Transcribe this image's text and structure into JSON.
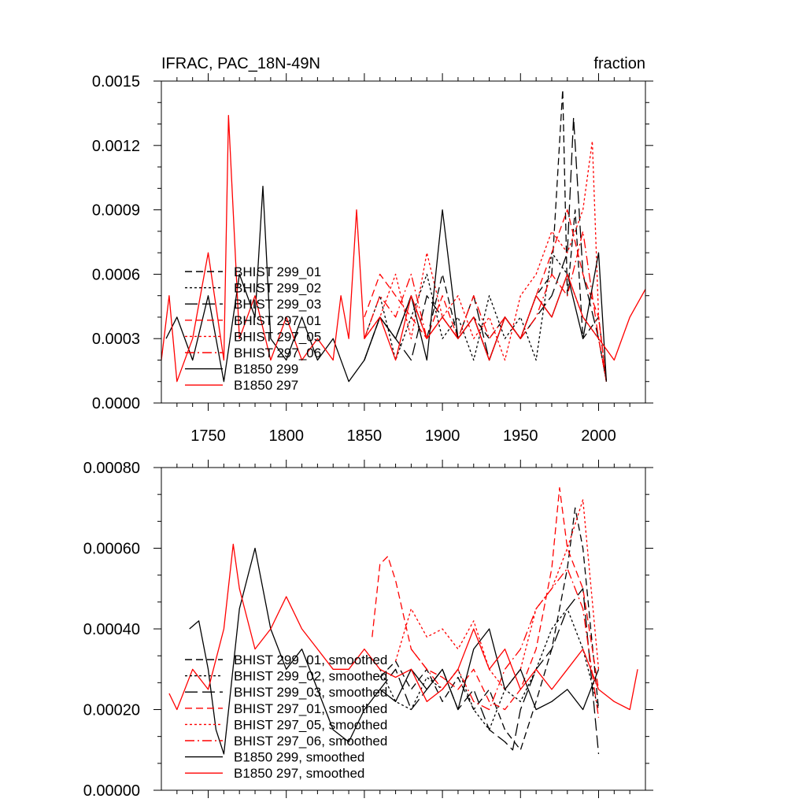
{
  "chart_data": [
    {
      "type": "line",
      "title": "IFRAC, PAC_18N-49N",
      "units": "fraction",
      "xlim": [
        1720,
        2030
      ],
      "ylim": [
        0,
        0.0015
      ],
      "xticks": [
        1750,
        1800,
        1850,
        1900,
        1950,
        2000
      ],
      "xtick_labels": [
        "1750",
        "1800",
        "1850",
        "1900",
        "1950",
        "2000"
      ],
      "yticks": [
        0,
        0.0003,
        0.0006,
        0.0009,
        0.0012,
        0.0015
      ],
      "ytick_labels": [
        "0.0000",
        "0.0003",
        "0.0006",
        "0.0009",
        "0.0012",
        "0.0015"
      ],
      "legend": [
        {
          "label": "BHIST 299_01",
          "color": "#000000",
          "style": "dash"
        },
        {
          "label": "BHIST 299_02",
          "color": "#000000",
          "style": "dot"
        },
        {
          "label": "BHIST 299_03",
          "color": "#000000",
          "style": "longdash"
        },
        {
          "label": "BHIST 297_01",
          "color": "#ff0000",
          "style": "dash"
        },
        {
          "label": "BHIST 297_05",
          "color": "#ff0000",
          "style": "dot"
        },
        {
          "label": "BHIST 297_06",
          "color": "#ff0000",
          "style": "dashdot"
        },
        {
          "label": "B1850 299",
          "color": "#000000",
          "style": "solid"
        },
        {
          "label": "B1850 297",
          "color": "#ff0000",
          "style": "solid"
        }
      ],
      "series": [
        {
          "name": "BHIST 299_01",
          "color": "#000000",
          "style": "dash",
          "x": [
            1850,
            1860,
            1870,
            1880,
            1890,
            1900,
            1910,
            1920,
            1930,
            1940,
            1950,
            1960,
            1970,
            1977,
            1980,
            1985,
            1990,
            2000,
            2005
          ],
          "y": [
            0.0002,
            0.0004,
            0.0003,
            0.0005,
            0.0003,
            0.0006,
            0.0003,
            0.0004,
            0.0003,
            0.0004,
            0.0003,
            0.0005,
            0.0006,
            0.00146,
            0.0005,
            0.0009,
            0.0003,
            0.0004,
            0.0001
          ]
        },
        {
          "name": "BHIST 299_02",
          "color": "#000000",
          "style": "dot",
          "x": [
            1850,
            1860,
            1870,
            1880,
            1890,
            1900,
            1910,
            1920,
            1930,
            1940,
            1950,
            1960,
            1970,
            1980,
            1990,
            2000,
            2005
          ],
          "y": [
            0.0003,
            0.0005,
            0.0002,
            0.0004,
            0.0006,
            0.0003,
            0.0004,
            0.0002,
            0.0005,
            0.0003,
            0.0004,
            0.0002,
            0.0007,
            0.0006,
            0.0004,
            0.0003,
            0.0001
          ]
        },
        {
          "name": "BHIST 299_03",
          "color": "#000000",
          "style": "longdash",
          "x": [
            1850,
            1860,
            1870,
            1880,
            1890,
            1900,
            1910,
            1920,
            1930,
            1940,
            1950,
            1960,
            1970,
            1980,
            1984,
            1990,
            2000,
            2005
          ],
          "y": [
            0.0002,
            0.0004,
            0.0003,
            0.0002,
            0.0005,
            0.0004,
            0.0003,
            0.0005,
            0.0002,
            0.0004,
            0.0003,
            0.0004,
            0.0005,
            0.0007,
            0.00133,
            0.0006,
            0.0003,
            0.0001
          ]
        },
        {
          "name": "BHIST 297_01",
          "color": "#ff0000",
          "style": "dash",
          "x": [
            1850,
            1860,
            1870,
            1880,
            1890,
            1900,
            1910,
            1920,
            1930,
            1940,
            1950,
            1960,
            1970,
            1980,
            1990,
            2000,
            2005
          ],
          "y": [
            0.0004,
            0.0006,
            0.0005,
            0.0004,
            0.0003,
            0.0005,
            0.0003,
            0.0004,
            0.0002,
            0.0004,
            0.0003,
            0.0005,
            0.0007,
            0.0009,
            0.0006,
            0.0004,
            0.0001
          ]
        },
        {
          "name": "BHIST 297_05",
          "color": "#ff0000",
          "style": "dot",
          "x": [
            1850,
            1860,
            1870,
            1880,
            1890,
            1900,
            1910,
            1920,
            1930,
            1940,
            1950,
            1960,
            1970,
            1980,
            1990,
            1996,
            2000,
            2005
          ],
          "y": [
            0.0003,
            0.0004,
            0.0006,
            0.0003,
            0.0007,
            0.0004,
            0.0005,
            0.0003,
            0.0004,
            0.0002,
            0.0005,
            0.0006,
            0.0008,
            0.0007,
            0.0009,
            0.00122,
            0.0004,
            0.0001
          ]
        },
        {
          "name": "BHIST 297_06",
          "color": "#ff0000",
          "style": "dashdot",
          "x": [
            1850,
            1860,
            1870,
            1880,
            1890,
            1900,
            1910,
            1920,
            1930,
            1940,
            1950,
            1960,
            1970,
            1980,
            1990,
            2000,
            2005
          ],
          "y": [
            0.0003,
            0.0005,
            0.0004,
            0.0006,
            0.0003,
            0.0004,
            0.0003,
            0.0005,
            0.0003,
            0.0004,
            0.0003,
            0.0004,
            0.0006,
            0.0005,
            0.0008,
            0.0003,
            0.0001
          ]
        },
        {
          "name": "B1850 299",
          "color": "#000000",
          "style": "solid",
          "x": [
            1723,
            1730,
            1740,
            1750,
            1760,
            1770,
            1780,
            1785,
            1790,
            1800,
            1810,
            1820,
            1830,
            1840,
            1850,
            1860,
            1870,
            1880,
            1890,
            1900,
            1910,
            1920,
            1930,
            1940,
            1950,
            1960,
            1970,
            1980,
            1990,
            2000,
            2005
          ],
          "y": [
            0.0003,
            0.0004,
            0.0002,
            0.0005,
            0.0001,
            0.0006,
            0.0004,
            0.00101,
            0.0003,
            0.0002,
            0.0004,
            0.0002,
            0.0003,
            0.0001,
            0.0002,
            0.0004,
            0.0003,
            0.0005,
            0.0002,
            0.0009,
            0.0003,
            0.0004,
            0.0002,
            0.0004,
            0.0003,
            0.0005,
            0.0004,
            0.0006,
            0.0003,
            0.0007,
            0.0001
          ]
        },
        {
          "name": "B1850 297",
          "color": "#ff0000",
          "style": "solid",
          "x": [
            1720,
            1725,
            1730,
            1740,
            1750,
            1760,
            1763,
            1770,
            1780,
            1790,
            1800,
            1810,
            1820,
            1830,
            1835,
            1840,
            1845,
            1850,
            1860,
            1870,
            1880,
            1890,
            1900,
            1910,
            1920,
            1930,
            1940,
            1950,
            1960,
            1970,
            1980,
            1990,
            2000,
            2010,
            2020,
            2030
          ],
          "y": [
            0.0002,
            0.0005,
            0.0001,
            0.0003,
            0.0007,
            0.0002,
            0.00134,
            0.0003,
            0.0005,
            0.0002,
            0.0004,
            0.0002,
            0.0003,
            0.0002,
            0.0005,
            0.0003,
            0.0009,
            0.0003,
            0.0004,
            0.0002,
            0.0005,
            0.0003,
            0.0004,
            0.0003,
            0.0004,
            0.0002,
            0.0004,
            0.0003,
            0.0005,
            0.0004,
            0.0006,
            0.0004,
            0.0003,
            0.0002,
            0.0004,
            0.00053
          ]
        }
      ]
    },
    {
      "type": "line",
      "title": "",
      "xlim": [
        1720,
        2030
      ],
      "ylim": [
        0,
        0.0008
      ],
      "yticks": [
        0,
        0.0002,
        0.0004,
        0.0006,
        0.0008
      ],
      "ytick_labels": [
        "0.00000",
        "0.00020",
        "0.00040",
        "0.00060",
        "0.00080"
      ],
      "legend": [
        {
          "label": "BHIST 299_01, smoothed",
          "color": "#000000",
          "style": "dash"
        },
        {
          "label": "BHIST 299_02, smoothed",
          "color": "#000000",
          "style": "dot"
        },
        {
          "label": "BHIST 299_03, smoothed",
          "color": "#000000",
          "style": "longdash"
        },
        {
          "label": "BHIST 297_01, smoothed",
          "color": "#ff0000",
          "style": "dash"
        },
        {
          "label": "BHIST 297_05, smoothed",
          "color": "#ff0000",
          "style": "dot"
        },
        {
          "label": "BHIST 297_06, smoothed",
          "color": "#ff0000",
          "style": "dashdot"
        },
        {
          "label": "B1850 299, smoothed",
          "color": "#000000",
          "style": "solid"
        },
        {
          "label": "B1850 297, smoothed",
          "color": "#ff0000",
          "style": "solid"
        }
      ],
      "series": [
        {
          "name": "BHIST 299_01, smoothed",
          "color": "#000000",
          "style": "dash",
          "x": [
            1860,
            1870,
            1880,
            1890,
            1900,
            1910,
            1920,
            1930,
            1940,
            1950,
            1960,
            1970,
            1980,
            1985,
            1990,
            2000
          ],
          "y": [
            0.00028,
            0.00032,
            0.00025,
            0.0003,
            0.00022,
            0.00028,
            0.0002,
            0.00025,
            0.00015,
            0.0001,
            0.00022,
            0.00035,
            0.00055,
            0.0007,
            0.0006,
            0.0002
          ]
        },
        {
          "name": "BHIST 299_02, smoothed",
          "color": "#000000",
          "style": "dot",
          "x": [
            1860,
            1870,
            1880,
            1890,
            1900,
            1910,
            1920,
            1930,
            1940,
            1950,
            1960,
            1970,
            1980,
            1990,
            2000
          ],
          "y": [
            0.0003,
            0.00022,
            0.0002,
            0.00028,
            0.00025,
            0.0003,
            0.0002,
            0.00015,
            0.00025,
            0.00022,
            0.0003,
            0.0004,
            0.00045,
            0.00035,
            0.0002
          ]
        },
        {
          "name": "BHIST 299_03, smoothed",
          "color": "#000000",
          "style": "longdash",
          "x": [
            1860,
            1870,
            1880,
            1890,
            1900,
            1910,
            1920,
            1930,
            1940,
            1945,
            1950,
            1960,
            1970,
            1980,
            1990,
            2000
          ],
          "y": [
            0.00025,
            0.0003,
            0.0002,
            0.00025,
            0.0003,
            0.0002,
            0.00025,
            0.00015,
            0.00012,
            0.0001,
            0.0002,
            0.0003,
            0.00035,
            0.00045,
            0.0005,
            9e-05
          ]
        },
        {
          "name": "BHIST 297_01, smoothed",
          "color": "#ff0000",
          "style": "dash",
          "x": [
            1855,
            1860,
            1865,
            1870,
            1880,
            1890,
            1900,
            1910,
            1920,
            1930,
            1940,
            1950,
            1960,
            1970,
            1975,
            1980,
            1990,
            2000
          ],
          "y": [
            0.00038,
            0.00056,
            0.00058,
            0.00052,
            0.00035,
            0.0003,
            0.00028,
            0.00025,
            0.0003,
            0.00022,
            0.0002,
            0.00025,
            0.00035,
            0.00055,
            0.00075,
            0.0006,
            0.0005,
            0.00025
          ]
        },
        {
          "name": "BHIST 297_05, smoothed",
          "color": "#ff0000",
          "style": "dot",
          "x": [
            1870,
            1880,
            1890,
            1900,
            1910,
            1920,
            1930,
            1940,
            1950,
            1960,
            1970,
            1980,
            1990,
            2000
          ],
          "y": [
            0.00032,
            0.00045,
            0.00038,
            0.0004,
            0.00035,
            0.00042,
            0.0003,
            0.00025,
            0.0003,
            0.00045,
            0.0005,
            0.0006,
            0.00072,
            0.0003
          ]
        },
        {
          "name": "BHIST 297_06, smoothed",
          "color": "#ff0000",
          "style": "dashdot",
          "x": [
            1880,
            1890,
            1900,
            1910,
            1920,
            1930,
            1940,
            1950,
            1960,
            1970,
            1980,
            1990,
            2000
          ],
          "y": [
            0.00035,
            0.0003,
            0.00025,
            0.0003,
            0.00022,
            0.0002,
            0.0003,
            0.00035,
            0.00045,
            0.0005,
            0.00055,
            0.00045,
            0.00018
          ]
        },
        {
          "name": "B1850 299, smoothed",
          "color": "#000000",
          "style": "solid",
          "x": [
            1738,
            1744,
            1750,
            1755,
            1760,
            1770,
            1780,
            1790,
            1800,
            1810,
            1820,
            1830,
            1840,
            1850,
            1860,
            1870,
            1880,
            1890,
            1900,
            1910,
            1920,
            1930,
            1940,
            1950,
            1960,
            1970,
            1980,
            1990,
            2000
          ],
          "y": [
            0.0004,
            0.00042,
            0.0003,
            0.00015,
            9e-05,
            0.00045,
            0.0006,
            0.0004,
            0.0003,
            0.00035,
            0.00025,
            0.00015,
            0.00012,
            0.0002,
            0.00025,
            0.00022,
            0.0003,
            0.00025,
            0.0003,
            0.0002,
            0.00035,
            0.0004,
            0.00025,
            0.0003,
            0.0002,
            0.00022,
            0.00025,
            0.0002,
            0.0003
          ]
        },
        {
          "name": "B1850 297, smoothed",
          "color": "#ff0000",
          "style": "solid",
          "x": [
            1725,
            1730,
            1740,
            1750,
            1760,
            1766,
            1770,
            1780,
            1790,
            1800,
            1810,
            1820,
            1830,
            1840,
            1850,
            1860,
            1870,
            1880,
            1890,
            1900,
            1910,
            1920,
            1930,
            1940,
            1950,
            1960,
            1970,
            1980,
            1990,
            2000,
            2010,
            2020,
            2025
          ],
          "y": [
            0.00024,
            0.0002,
            0.0003,
            0.00025,
            0.0004,
            0.00061,
            0.0005,
            0.00035,
            0.0004,
            0.00048,
            0.0004,
            0.00035,
            0.0003,
            0.0003,
            0.00035,
            0.0003,
            0.00028,
            0.0003,
            0.00022,
            0.00025,
            0.0003,
            0.0004,
            0.0003,
            0.00035,
            0.00025,
            0.0003,
            0.00025,
            0.0003,
            0.00035,
            0.00025,
            0.00022,
            0.0002,
            0.0003
          ]
        }
      ]
    }
  ]
}
